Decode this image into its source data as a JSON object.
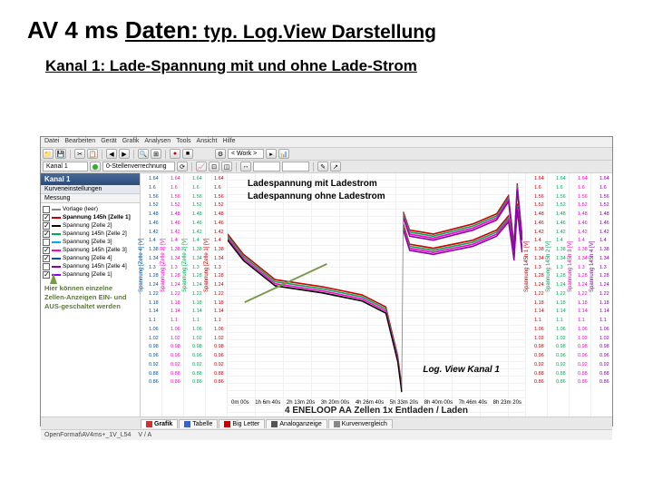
{
  "slide": {
    "title_prefix": "AV 4 ms ",
    "title_underline": "Daten:",
    "title_suffix_underline": " typ. Log.View Darstellung",
    "subtitle": "Kanal 1: Lade-Spannung mit und ohne Lade-Strom"
  },
  "menubar": [
    "Datei",
    "Bearbeiten",
    "Gerät",
    "Grafik",
    "Analysen",
    "Tools",
    "Ansicht",
    "Hilfe"
  ],
  "toolbar": {
    "device_combo": "< Work >",
    "channel_combo": "Kanal 1",
    "zero_btn": "0-Stellenverrechnung"
  },
  "sidebar": {
    "header": "Kanal 1",
    "sub": "Kurveneinstellungen",
    "sub2": "Messung",
    "note": "Hier können einzelne Zellen-Anzeigen EIN- und AUS-geschaltet werden"
  },
  "legend": [
    {
      "label": "Vorlage (leer)",
      "color": "#888888",
      "checked": false,
      "bold": false
    },
    {
      "label": "Spannung 145h [Zelle 1]",
      "color": "#cc0000",
      "checked": true,
      "bold": true
    },
    {
      "label": "Spannung [Zelle 2]",
      "color": "#000000",
      "checked": true,
      "bold": false
    },
    {
      "label": "Spannung 145h [Zelle 2]",
      "color": "#00aa55",
      "checked": true,
      "bold": false
    },
    {
      "label": "Spannung [Zelle 3]",
      "color": "#00aaff",
      "checked": false,
      "bold": false
    },
    {
      "label": "Spannung 145h [Zelle 3]",
      "color": "#ff00cc",
      "checked": true,
      "bold": false
    },
    {
      "label": "Spannung [Zelle 4]",
      "color": "#0055aa",
      "checked": true,
      "bold": false
    },
    {
      "label": "Spannung 145h [Zelle 4]",
      "color": "#8800aa",
      "checked": false,
      "bold": false
    },
    {
      "label": "Spannung [Zelle 1]",
      "color": "#8800ff",
      "checked": true,
      "bold": false
    }
  ],
  "yaxes_left": [
    {
      "label": "Spannung [Zelle 4] [V]",
      "color": "#0055aa"
    },
    {
      "label": "Spannung [Zelle 3] [V]",
      "color": "#ff00cc"
    },
    {
      "label": "Spannung [Zelle 2] [V]",
      "color": "#00aa55"
    },
    {
      "label": "Spannung [Zelle 1] [V]",
      "color": "#cc0000"
    }
  ],
  "yaxes_right": [
    {
      "label": "Spannung 145h 1 [V]",
      "color": "#cc0000"
    },
    {
      "label": "Spannung 145h 2 [V]",
      "color": "#00aa55"
    },
    {
      "label": "Spannung 145h 3 [V]",
      "color": "#ff00cc"
    },
    {
      "label": "Spannung 145h 4 [V]",
      "color": "#8800aa"
    }
  ],
  "yticks": [
    "1.64",
    "1.6",
    "1.56",
    "1.52",
    "1.48",
    "1.46",
    "1.42",
    "1.4",
    "1.38",
    "1.34",
    "1.3",
    "1.28",
    "1.24",
    "1.22",
    "1.18",
    "1.14",
    "1.1",
    "1.06",
    "1.02",
    "0.98",
    "0.96",
    "0.92",
    "0.88",
    "0.86"
  ],
  "xticks": [
    "0m 00s",
    "1h 6m 40s",
    "2h 13m 20s",
    "3h 20m 00s",
    "4h 26m 40s",
    "5h 33m 20s",
    "8h 40m 00s",
    "7h 46m 40s",
    "8h 23m 20s"
  ],
  "annotations": {
    "top1": "Ladespannung mit Ladestrom",
    "top2": "Ladespannung ohne Ladestrom",
    "mid": "Log. View Kanal 1",
    "footer": "4 ENELOOP AA Zellen 1x Entladen / Laden"
  },
  "curves": {
    "discharge": [
      [
        0,
        60
      ],
      [
        20,
        80
      ],
      [
        60,
        105
      ],
      [
        120,
        112
      ],
      [
        170,
        120
      ],
      [
        200,
        132
      ],
      [
        215,
        180
      ],
      [
        220,
        210
      ]
    ],
    "charge_upper": [
      [
        222,
        38
      ],
      [
        230,
        56
      ],
      [
        260,
        60
      ],
      [
        310,
        50
      ],
      [
        340,
        40
      ],
      [
        355,
        22
      ],
      [
        362,
        70
      ],
      [
        366,
        10
      ],
      [
        372,
        60
      ]
    ],
    "charge_lower": [
      [
        222,
        50
      ],
      [
        230,
        70
      ],
      [
        260,
        74
      ],
      [
        310,
        66
      ],
      [
        340,
        56
      ],
      [
        355,
        42
      ],
      [
        362,
        80
      ],
      [
        366,
        30
      ],
      [
        372,
        72
      ]
    ],
    "colors_discharge": [
      "#cc0000",
      "#00aa55",
      "#ff00cc",
      "#000000"
    ],
    "colors_charge": [
      "#cc0000",
      "#00aa55",
      "#ff00cc",
      "#8800aa"
    ],
    "line_width": 1.5
  },
  "tabs": [
    {
      "label": "Grafik",
      "icon_color": "#cc3333",
      "active": true
    },
    {
      "label": "Tabelle",
      "icon_color": "#3366cc",
      "active": false
    },
    {
      "label": "Big Letter",
      "icon_color": "#cc0000",
      "active": false
    },
    {
      "label": "Analoganzeige",
      "icon_color": "#555555",
      "active": false
    },
    {
      "label": "Kurvenvergleich",
      "icon_color": "#888888",
      "active": false
    }
  ],
  "statusbar": {
    "left": "OpenFormat\\AV4ms+_1V_L54",
    "mid": "V / A"
  },
  "colors": {
    "header_bg": "#3a5a8a",
    "note_color": "#5a7a3a"
  }
}
